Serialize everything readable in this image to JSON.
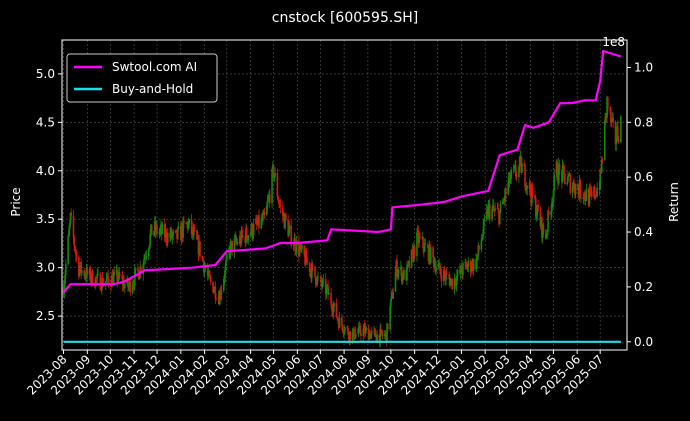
{
  "chart_data": {
    "type": "candlestick-line",
    "title": "cnstock [600595.SH]",
    "ylabel_left": "Price",
    "ylabel_right": "Return",
    "right_axis_multiplier": "1e8",
    "ylim_left": [
      2.15,
      5.35
    ],
    "ylim_right": [
      -0.03,
      1.1
    ],
    "yticks_left": [
      "2.5",
      "3.0",
      "3.5",
      "4.0",
      "4.5",
      "5.0"
    ],
    "yticks_right": [
      "0.0",
      "0.2",
      "0.4",
      "0.6",
      "0.8",
      "1.0"
    ],
    "xticks": [
      "2023-08",
      "2023-09",
      "2023-10",
      "2023-11",
      "2023-12",
      "2024-01",
      "2024-02",
      "2024-03",
      "2024-04",
      "2024-05",
      "2024-06",
      "2024-07",
      "2024-08",
      "2024-09",
      "2024-10",
      "2024-11",
      "2024-12",
      "2025-01",
      "2025-02",
      "2025-03",
      "2025-04",
      "2025-05",
      "2025-06",
      "2025-07"
    ],
    "grid": true,
    "legend_position": "top-left",
    "price_series": {
      "x": [
        "2023-08-01",
        "2023-08-10",
        "2023-08-20",
        "2023-09-05",
        "2023-09-20",
        "2023-10-10",
        "2023-10-25",
        "2023-11-10",
        "2023-11-25",
        "2023-12-10",
        "2023-12-25",
        "2024-01-10",
        "2024-01-25",
        "2024-02-05",
        "2024-02-20",
        "2024-03-05",
        "2024-03-20",
        "2024-04-05",
        "2024-04-20",
        "2024-05-01",
        "2024-05-10",
        "2024-05-25",
        "2024-06-10",
        "2024-06-25",
        "2024-07-10",
        "2024-07-25",
        "2024-08-10",
        "2024-08-25",
        "2024-09-10",
        "2024-09-25",
        "2024-10-08",
        "2024-10-20",
        "2024-11-05",
        "2024-11-20",
        "2024-12-05",
        "2024-12-20",
        "2025-01-05",
        "2025-01-20",
        "2025-02-05",
        "2025-02-20",
        "2025-03-05",
        "2025-03-20",
        "2025-04-05",
        "2025-04-20",
        "2025-05-05",
        "2025-05-20",
        "2025-06-05",
        "2025-06-20",
        "2025-07-01",
        "2025-07-10",
        "2025-07-20",
        "2025-07-28"
      ],
      "close": [
        2.8,
        3.5,
        3.0,
        2.9,
        2.85,
        2.9,
        2.8,
        3.0,
        3.4,
        3.35,
        3.3,
        3.45,
        3.2,
        2.9,
        2.7,
        3.2,
        3.3,
        3.4,
        3.5,
        4.0,
        3.6,
        3.3,
        3.1,
        2.9,
        2.75,
        2.45,
        2.3,
        2.35,
        2.3,
        2.3,
        3.0,
        2.9,
        3.3,
        3.15,
        2.95,
        2.85,
        3.0,
        3.05,
        3.6,
        3.55,
        3.9,
        4.05,
        3.7,
        3.3,
        4.0,
        3.9,
        3.8,
        3.7,
        3.9,
        4.7,
        4.3,
        4.5
      ]
    },
    "series": [
      {
        "name": "Swtool.com AI",
        "color": "#ff00ff",
        "x": [
          "2023-08-01",
          "2023-08-10",
          "2023-10-05",
          "2023-10-20",
          "2023-11-15",
          "2024-01-15",
          "2024-02-15",
          "2024-03-01",
          "2024-04-20",
          "2024-05-10",
          "2024-06-01",
          "2024-07-10",
          "2024-07-15",
          "2024-09-15",
          "2024-10-01",
          "2024-10-03",
          "2024-11-10",
          "2024-12-10",
          "2025-01-01",
          "2025-02-05",
          "2025-02-20",
          "2025-03-15",
          "2025-03-25",
          "2025-04-05",
          "2025-04-25",
          "2025-05-10",
          "2025-05-25",
          "2025-06-10",
          "2025-06-25",
          "2025-07-01",
          "2025-07-05",
          "2025-07-28"
        ],
        "values": [
          0.18,
          0.21,
          0.21,
          0.22,
          0.26,
          0.27,
          0.28,
          0.33,
          0.34,
          0.36,
          0.36,
          0.37,
          0.41,
          0.4,
          0.41,
          0.49,
          0.5,
          0.51,
          0.53,
          0.55,
          0.68,
          0.7,
          0.79,
          0.78,
          0.8,
          0.87,
          0.87,
          0.88,
          0.88,
          0.95,
          1.06,
          1.04
        ]
      },
      {
        "name": "Buy-and-Hold",
        "color": "#22dde4",
        "x": [
          "2023-08-01",
          "2025-07-28"
        ],
        "values": [
          0.0,
          0.0
        ]
      }
    ],
    "colors": {
      "up": "#118a0a",
      "down": "#d7190c",
      "background": "#000000",
      "grid": "#555555"
    }
  }
}
